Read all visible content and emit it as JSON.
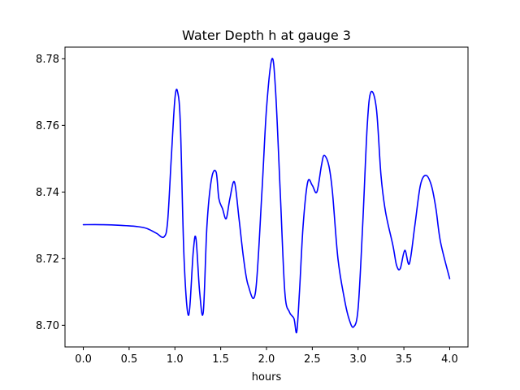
{
  "chart_data": {
    "type": "line",
    "title": "Water Depth h at gauge 3",
    "xlabel": "hours",
    "ylabel": "",
    "xlim": [
      -0.2,
      4.2
    ],
    "ylim": [
      8.6935,
      8.7835
    ],
    "xticks": [
      0.0,
      0.5,
      1.0,
      1.5,
      2.0,
      2.5,
      3.0,
      3.5,
      4.0
    ],
    "xtick_labels": [
      "0.0",
      "0.5",
      "1.0",
      "1.5",
      "2.0",
      "2.5",
      "3.0",
      "3.5",
      "4.0"
    ],
    "yticks": [
      8.7,
      8.72,
      8.74,
      8.76,
      8.78
    ],
    "ytick_labels": [
      "8.70",
      "8.72",
      "8.74",
      "8.76",
      "8.78"
    ],
    "grid": false,
    "legend": "none",
    "series": [
      {
        "color": "#0000ff",
        "x": [
          0.0,
          0.2,
          0.4,
          0.6,
          0.7,
          0.8,
          0.88,
          0.92,
          0.96,
          1.0,
          1.03,
          1.06,
          1.1,
          1.15,
          1.2,
          1.23,
          1.27,
          1.31,
          1.35,
          1.4,
          1.45,
          1.48,
          1.52,
          1.56,
          1.6,
          1.65,
          1.7,
          1.75,
          1.8,
          1.88,
          1.95,
          2.0,
          2.06,
          2.1,
          2.15,
          2.2,
          2.25,
          2.3,
          2.33,
          2.36,
          2.4,
          2.45,
          2.5,
          2.55,
          2.6,
          2.63,
          2.68,
          2.72,
          2.78,
          2.85,
          2.9,
          2.95,
          3.0,
          3.05,
          3.1,
          3.14,
          3.2,
          3.25,
          3.3,
          3.38,
          3.42,
          3.46,
          3.51,
          3.56,
          3.62,
          3.68,
          3.74,
          3.8,
          3.85,
          3.9,
          4.0
        ],
        "y": [
          8.7302,
          8.7302,
          8.73,
          8.7296,
          8.729,
          8.7276,
          8.7265,
          8.731,
          8.75,
          8.768,
          8.77,
          8.76,
          8.72,
          8.703,
          8.722,
          8.726,
          8.71,
          8.704,
          8.73,
          8.744,
          8.746,
          8.738,
          8.735,
          8.732,
          8.738,
          8.743,
          8.732,
          8.72,
          8.712,
          8.71,
          8.74,
          8.765,
          8.78,
          8.77,
          8.74,
          8.71,
          8.704,
          8.702,
          8.698,
          8.71,
          8.73,
          8.743,
          8.742,
          8.74,
          8.748,
          8.751,
          8.748,
          8.74,
          8.72,
          8.708,
          8.702,
          8.6995,
          8.705,
          8.73,
          8.76,
          8.77,
          8.765,
          8.745,
          8.734,
          8.724,
          8.718,
          8.717,
          8.7225,
          8.7185,
          8.73,
          8.742,
          8.745,
          8.742,
          8.735,
          8.725,
          8.714
        ]
      }
    ]
  }
}
